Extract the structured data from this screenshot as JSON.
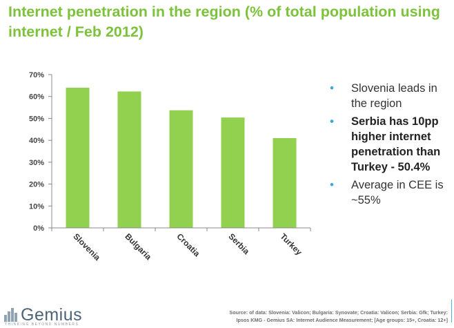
{
  "title": "Internet penetration in the region (% of total population using internet / Feb 2012)",
  "chart_data": {
    "type": "bar",
    "categories": [
      "Slovenia",
      "Bulgaria",
      "Croatia",
      "Serbia",
      "Turkey"
    ],
    "values": [
      64,
      62.3,
      53.7,
      50.4,
      41
    ],
    "ylim": [
      0,
      70
    ],
    "yticks": [
      "0%",
      "10%",
      "20%",
      "30%",
      "40%",
      "50%",
      "60%",
      "70%"
    ],
    "bar_color": "#92d050",
    "xlabel": "",
    "ylabel": "",
    "grid": false
  },
  "bullets": [
    {
      "text": "Slovenia leads in the region",
      "bold": false
    },
    {
      "text": "Serbia has 10pp higher internet penetration than Turkey - 50.4%",
      "bold": true
    },
    {
      "text": "Average in CEE is ~55%",
      "bold": false
    }
  ],
  "bullet_symbol": "•",
  "logo": {
    "name": "Gemius",
    "tagline": "THINKING BEYOND NUMBERS"
  },
  "source": {
    "line1": "Source: of data:  Slovenia:  Valicon;  Bulgaria: Synovate;   Croatia: Valicon;   Serbia: Gfk; Turkey:",
    "line2": "Ipsos KMG - Gemius SA: Internet Audience Measurement; [Age groups: 15+, Croatia: 12+]"
  },
  "colors": {
    "title": "#7cc23a",
    "bullet": "#3aa9d9",
    "bar": "#92d050"
  }
}
